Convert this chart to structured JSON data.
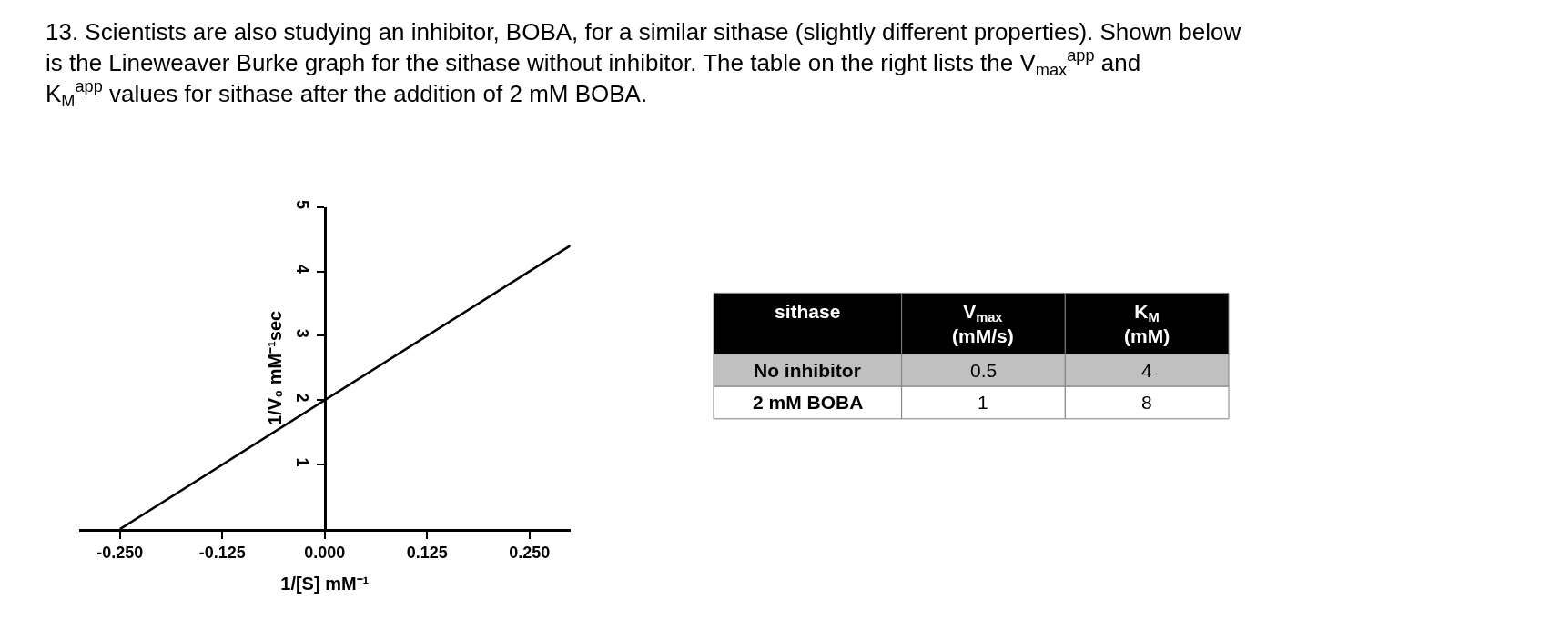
{
  "chart_data": [
    {
      "type": "line",
      "title": "13. Scientists are also studying an inhibitor, BOBA, for a similar sithase (slightly different properties). Shown below is the Lineweaver Burke graph for the sithase without inhibitor. The table on the right lists the V$_{max}$$^{app}$ and K$_{M}$$^{app}$ values for sithase after the addition of 2 mM BOBA.",
      "xlabel": "1/[S] mM⁻¹",
      "ylabel": "1/V₀ mM⁻¹sec",
      "x": [
        -0.25,
        0.3
      ],
      "series": [
        {
          "color": "#000000",
          "values": [
            0,
            4.4
          ]
        }
      ],
      "xlim": [
        -0.3,
        0.3
      ],
      "ylim": [
        0,
        5
      ],
      "xticks": [
        {
          "value": -0.25,
          "label": "-0.250"
        },
        {
          "value": -0.125,
          "label": "-0.125"
        },
        {
          "value": 0,
          "label": "0.000"
        },
        {
          "value": 0.125,
          "label": "0.125"
        },
        {
          "value": 0.25,
          "label": "0.250"
        }
      ],
      "yticks": [
        1,
        2,
        3,
        4,
        5
      ],
      "marker": "none",
      "line_style": "solid"
    },
    {
      "type": "other",
      "ylabel": "sithase",
      "categories": [
        "V$_{max}$ (mM/s)",
        "K$_{M}$ (mM)"
      ],
      "y_categories": [
        "No inhibitor",
        "2 mM BOBA"
      ],
      "cell_labels": [
        [
          "0.5",
          "4"
        ],
        [
          "1",
          "8"
        ]
      ]
    }
  ]
}
